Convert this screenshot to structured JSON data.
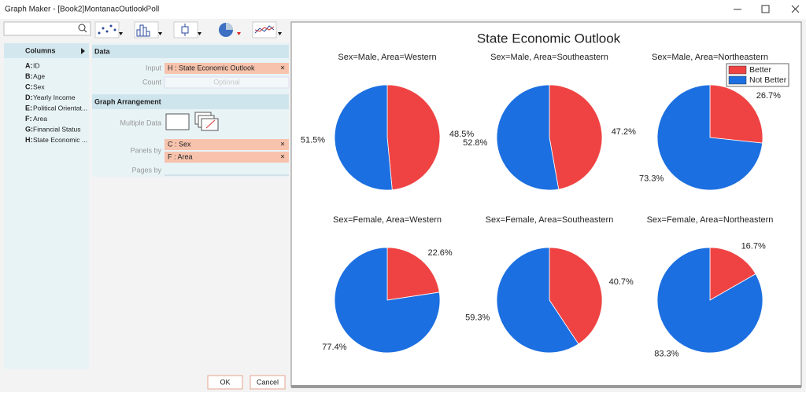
{
  "window": {
    "title": "Graph Maker - [Book2]MontanacOutlookPoll"
  },
  "columns": {
    "header": "Columns",
    "items": [
      {
        "letter": "A:",
        "name": "ID"
      },
      {
        "letter": "B:",
        "name": "Age"
      },
      {
        "letter": "C:",
        "name": "Sex"
      },
      {
        "letter": "D:",
        "name": "Yearly Income"
      },
      {
        "letter": "E:",
        "name": "Political Orientat..."
      },
      {
        "letter": "F:",
        "name": "Area"
      },
      {
        "letter": "G:",
        "name": "Financial Status"
      },
      {
        "letter": "H:",
        "name": "State Economic ..."
      }
    ]
  },
  "data_section": {
    "header": "Data",
    "input_label": "Input",
    "input_value": "H : State Economic Outlook",
    "count_label": "Count",
    "count_placeholder": "Optional"
  },
  "arrangement": {
    "header": "Graph Arrangement",
    "multiple_data_label": "Multiple Data",
    "panels_by_label": "Panels by",
    "panels_by": [
      "C : Sex",
      "F : Area"
    ],
    "pages_by_label": "Pages by"
  },
  "buttons": {
    "ok": "OK",
    "cancel": "Cancel"
  },
  "chart_data": {
    "type": "pie",
    "title": "State Economic Outlook",
    "series_names": [
      "Better",
      "Not Better"
    ],
    "colors": [
      "#ef4343",
      "#1c6fe0"
    ],
    "legend": "top-right",
    "panels": [
      {
        "title": "Sex=Male, Area=Western",
        "values": [
          48.5,
          51.5
        ],
        "value_labels": [
          "48.5%",
          "51.5%"
        ]
      },
      {
        "title": "Sex=Male, Area=Southeastern",
        "values": [
          47.2,
          52.8
        ],
        "value_labels": [
          "47.2%",
          "52.8%"
        ]
      },
      {
        "title": "Sex=Male, Area=Northeastern",
        "values": [
          26.7,
          73.3
        ],
        "value_labels": [
          "26.7%",
          "73.3%"
        ]
      },
      {
        "title": "Sex=Female, Area=Western",
        "values": [
          22.6,
          77.4
        ],
        "value_labels": [
          "22.6%",
          "77.4%"
        ]
      },
      {
        "title": "Sex=Female, Area=Southeastern",
        "values": [
          40.7,
          59.3
        ],
        "value_labels": [
          "40.7%",
          "59.3%"
        ]
      },
      {
        "title": "Sex=Female, Area=Northeastern",
        "values": [
          16.7,
          83.3
        ],
        "value_labels": [
          "16.7%",
          "83.3%"
        ]
      }
    ]
  }
}
